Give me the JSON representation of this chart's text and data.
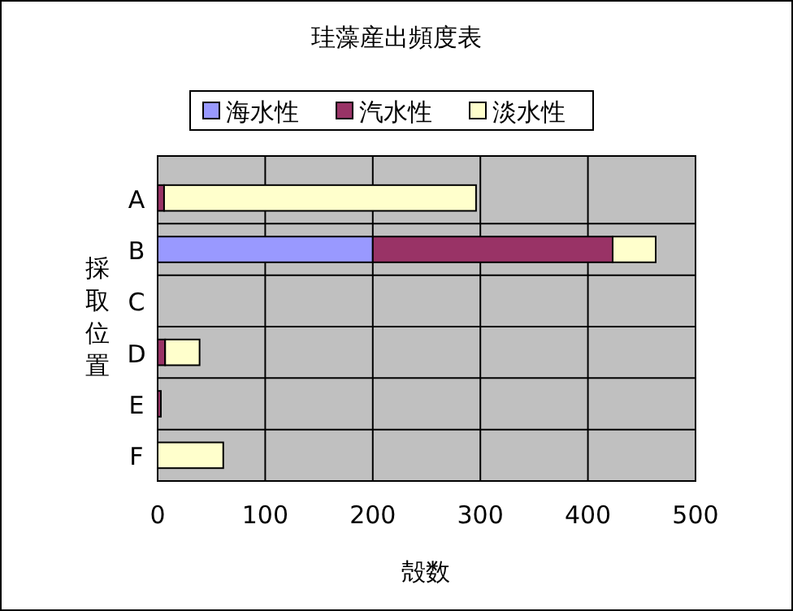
{
  "chart_data": {
    "type": "bar",
    "orientation": "horizontal",
    "stacked": true,
    "title": "珪藻産出頻度表",
    "xlabel": "殻数",
    "ylabel": "採取位置",
    "categories": [
      "A",
      "B",
      "C",
      "D",
      "E",
      "F"
    ],
    "xlim": [
      0,
      500
    ],
    "xticks": [
      0,
      100,
      200,
      300,
      400,
      500
    ],
    "grid": true,
    "legend": "top",
    "series": [
      {
        "name": "海水性",
        "color": "#9999ff",
        "values": [
          0,
          200,
          0,
          0,
          0,
          0
        ]
      },
      {
        "name": "汽水性",
        "color": "#993366",
        "values": [
          6,
          223,
          0,
          7,
          3,
          0
        ]
      },
      {
        "name": "淡水性",
        "color": "#ffffcc",
        "values": [
          290,
          40,
          0,
          32,
          0,
          61
        ]
      }
    ]
  }
}
